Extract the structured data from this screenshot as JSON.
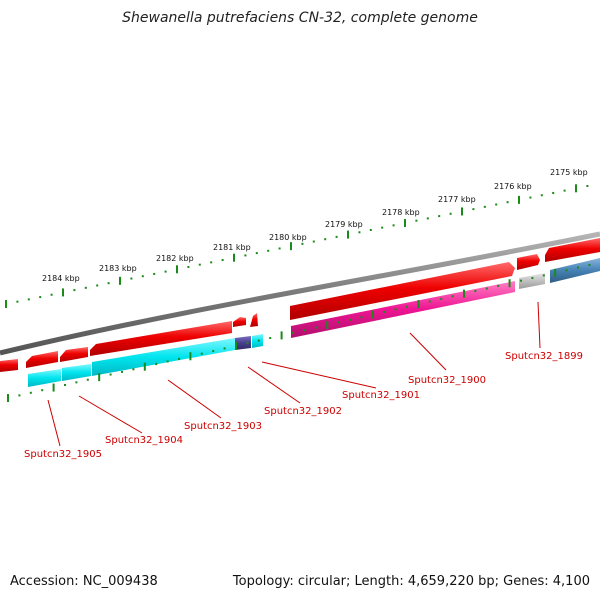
{
  "header": {
    "title": "Shewanella putrefaciens CN-32, complete genome"
  },
  "footer": {
    "accession": "Accession: NC_009438",
    "summary": "Topology: circular; Length: 4,659,220 bp; Genes: 4,100"
  },
  "ruler": {
    "labels": [
      "2175 kbp",
      "2176 kbp",
      "2177 kbp",
      "2178 kbp",
      "2179 kbp",
      "2180 kbp",
      "2181 kbp",
      "2182 kbp",
      "2183 kbp",
      "2184 kbp"
    ]
  },
  "genes": [
    {
      "name": "Sputcn32_1899"
    },
    {
      "name": "Sputcn32_1900"
    },
    {
      "name": "Sputcn32_1901"
    },
    {
      "name": "Sputcn32_1902"
    },
    {
      "name": "Sputcn32_1903"
    },
    {
      "name": "Sputcn32_1904"
    },
    {
      "name": "Sputcn32_1905"
    }
  ],
  "colors": {
    "backbone": "#7a7a7a",
    "cds_red": "#ee0000",
    "cog_cyan": "#00e5ee",
    "cog_magenta": "#ee1493",
    "cog_navy": "#483d8b",
    "cog_steel": "#4682b4",
    "cog_grey": "#c0c0c0",
    "ticks": "#1a8a1a",
    "label_line": "#cc0000"
  }
}
